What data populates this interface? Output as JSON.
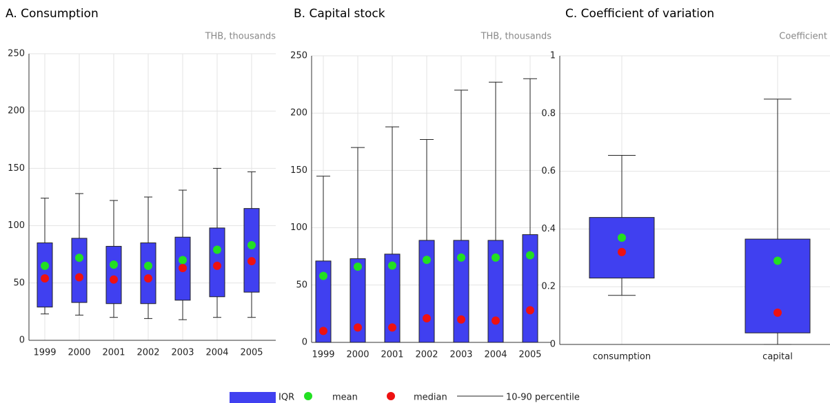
{
  "chart_data": [
    {
      "type": "box",
      "title": "A. Consumption",
      "unit": "THB, thousands",
      "categories": [
        "1999",
        "2000",
        "2001",
        "2002",
        "2003",
        "2004",
        "2005"
      ],
      "p90": [
        124,
        128,
        122,
        125,
        131,
        150,
        147
      ],
      "q3": [
        85,
        89,
        82,
        85,
        90,
        98,
        115
      ],
      "q1": [
        29,
        33,
        32,
        32,
        35,
        38,
        42
      ],
      "p10": [
        23,
        22,
        20,
        19,
        18,
        20,
        20
      ],
      "mean": [
        65,
        72,
        66,
        65,
        70,
        79,
        83
      ],
      "median": [
        54,
        55,
        53,
        54,
        63,
        65,
        69
      ],
      "ylim": [
        0,
        250
      ],
      "yticks": [
        0,
        50,
        100,
        150,
        200,
        250
      ],
      "grid": true
    },
    {
      "type": "box",
      "title": "B. Capital stock",
      "unit": "THB, thousands",
      "categories": [
        "1999",
        "2000",
        "2001",
        "2002",
        "2003",
        "2004",
        "2005"
      ],
      "p90": [
        145,
        170,
        188,
        177,
        220,
        227,
        230
      ],
      "q3": [
        71,
        73,
        77,
        89,
        89,
        89,
        94
      ],
      "q1": [
        0,
        0,
        0,
        0,
        0,
        0,
        0
      ],
      "p10": [
        0,
        0,
        0,
        0,
        0,
        0,
        0
      ],
      "mean": [
        58,
        66,
        67,
        72,
        74,
        74,
        76
      ],
      "median": [
        10,
        13,
        13,
        21,
        20,
        19,
        28
      ],
      "ylim": [
        0,
        250
      ],
      "yticks": [
        0,
        50,
        100,
        150,
        200,
        250
      ],
      "grid": true
    },
    {
      "type": "box",
      "title": "C. Coefficient of variation",
      "unit": "Coefficient",
      "categories": [
        "consumption",
        "capital"
      ],
      "p90": [
        0.655,
        0.85
      ],
      "q3": [
        0.44,
        0.365
      ],
      "q1": [
        0.23,
        0.04
      ],
      "p10": [
        0.17,
        0
      ],
      "mean": [
        0.37,
        0.29
      ],
      "median": [
        0.32,
        0.11
      ],
      "ylim": [
        0,
        1
      ],
      "yticks": [
        0,
        0.2,
        0.4,
        0.6,
        0.8,
        1
      ],
      "grid": true
    }
  ],
  "legend": {
    "iqr": {
      "label": "IQR",
      "color": "#4040f0"
    },
    "mean": {
      "label": "mean",
      "color": "#22e022"
    },
    "median": {
      "label": "median",
      "color": "#ee1111"
    },
    "range": {
      "label": "10-90 percentile",
      "color": "#222222"
    }
  }
}
